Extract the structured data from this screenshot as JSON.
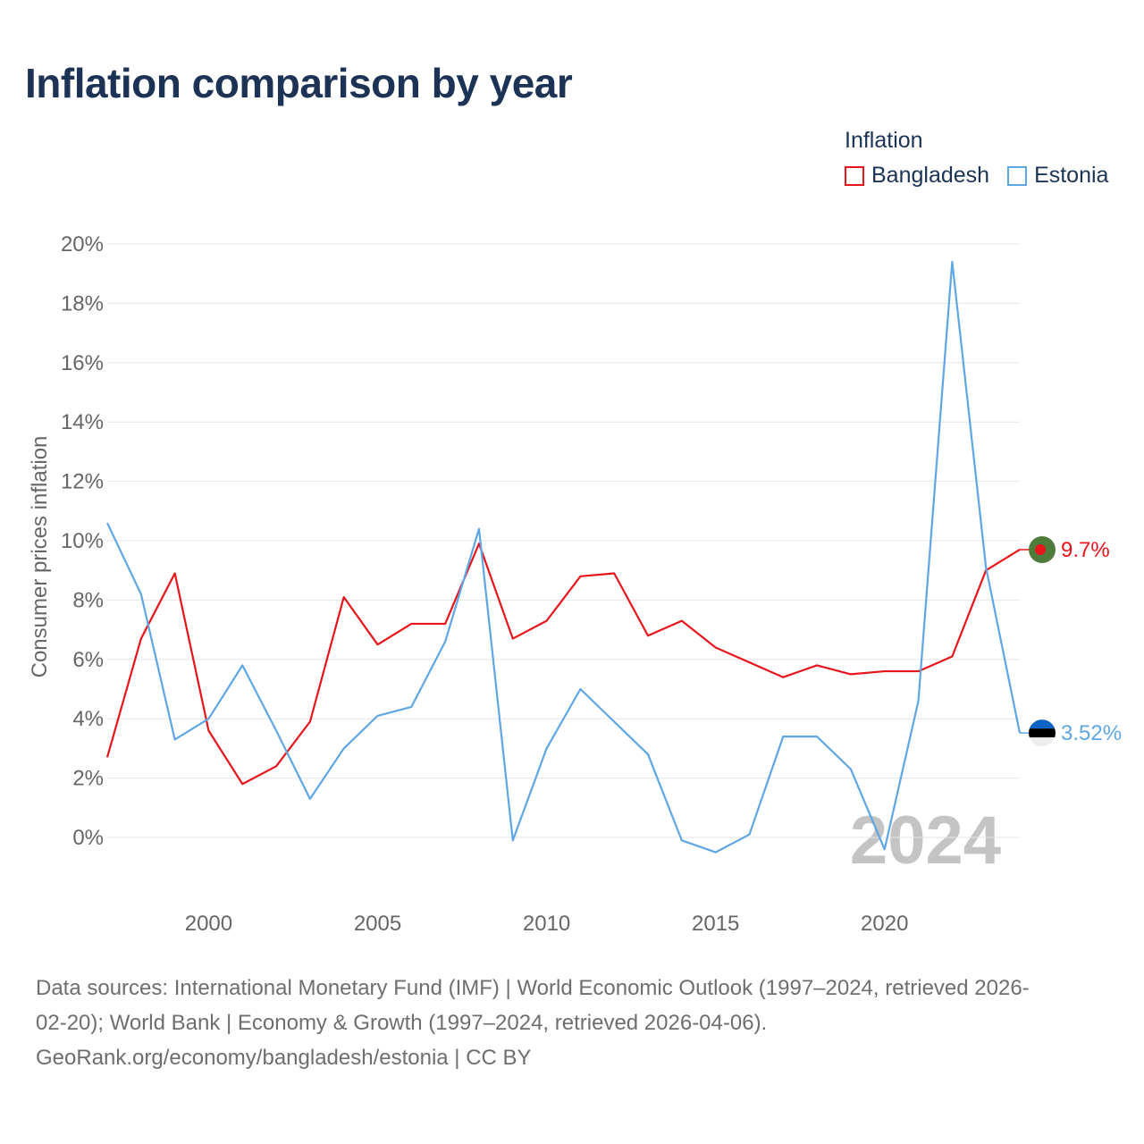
{
  "title": "Inflation comparison by year",
  "legend": {
    "title": "Inflation",
    "items": [
      {
        "name": "Bangladesh",
        "color": "#e8141b"
      },
      {
        "name": "Estonia",
        "color": "#5ea6e4"
      }
    ]
  },
  "watermark_year": "2024",
  "footer": {
    "line1": "Data sources: International Monetary Fund (IMF) | World Economic Outlook (1997–2024, retrieved 2026-",
    "line2": "02-20); World Bank | Economy & Growth (1997–2024, retrieved 2026-04-06).",
    "line3": "GeoRank.org/economy/bangladesh/estonia | CC BY"
  },
  "flag_icons": {
    "bangladesh": "bangladesh-flag-icon",
    "estonia": "estonia-flag-icon"
  },
  "chart_data": {
    "type": "line",
    "title": "Inflation comparison by year",
    "xlabel": "",
    "ylabel": "Consumer prices inflation",
    "xlim": [
      1997,
      2024
    ],
    "ylim": [
      0,
      20
    ],
    "yticks": [
      0,
      2,
      4,
      6,
      8,
      10,
      12,
      14,
      16,
      18,
      20
    ],
    "ytick_labels": [
      "0%",
      "2%",
      "4%",
      "6%",
      "8%",
      "10%",
      "12%",
      "14%",
      "16%",
      "18%",
      "20%"
    ],
    "xticks": [
      2000,
      2005,
      2010,
      2015,
      2020
    ],
    "xtick_labels": [
      "2000",
      "2005",
      "2010",
      "2015",
      "2020"
    ],
    "grid": true,
    "x": [
      1997,
      1998,
      1999,
      2000,
      2001,
      2002,
      2003,
      2004,
      2005,
      2006,
      2007,
      2008,
      2009,
      2010,
      2011,
      2012,
      2013,
      2014,
      2015,
      2016,
      2017,
      2018,
      2019,
      2020,
      2021,
      2022,
      2023,
      2024
    ],
    "series": [
      {
        "name": "Bangladesh",
        "color": "#e8141b",
        "values": [
          2.7,
          6.7,
          8.9,
          3.6,
          1.8,
          2.4,
          3.9,
          8.1,
          6.5,
          7.2,
          7.2,
          9.9,
          6.7,
          7.3,
          8.8,
          8.9,
          6.8,
          7.3,
          6.4,
          5.9,
          5.4,
          5.8,
          5.5,
          5.6,
          5.6,
          6.1,
          9.0,
          9.7
        ],
        "end_label": "9.7%"
      },
      {
        "name": "Estonia",
        "color": "#5ea6e4",
        "values": [
          10.6,
          8.2,
          3.3,
          4.0,
          5.8,
          3.6,
          1.3,
          3.0,
          4.1,
          4.4,
          6.6,
          10.4,
          -0.1,
          3.0,
          5.0,
          3.9,
          2.8,
          -0.1,
          -0.5,
          0.1,
          3.4,
          3.4,
          2.3,
          -0.4,
          4.6,
          19.4,
          9.1,
          3.52
        ],
        "end_label": "3.52%"
      }
    ]
  }
}
